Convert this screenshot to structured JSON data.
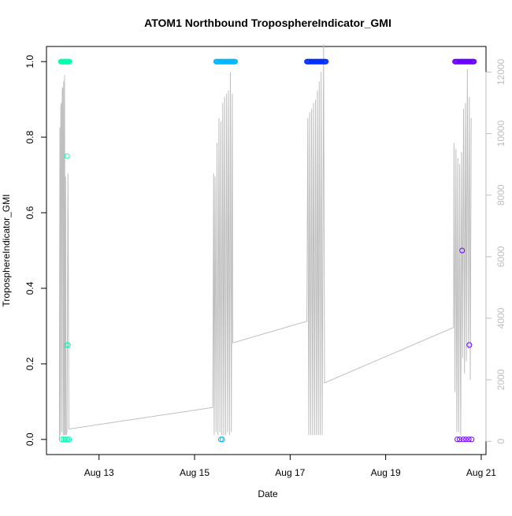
{
  "chart_data": {
    "type": "scatter",
    "title": "ATOM1 Northbound TroposphereIndicator_GMI",
    "xlabel": "Date",
    "ylabel": "TroposphereIndicator_GMI",
    "x_axis": {
      "ticks": [
        "Aug 13",
        "Aug 15",
        "Aug 17",
        "Aug 19",
        "Aug 21"
      ],
      "tick_values_days": [
        13,
        15,
        17,
        19,
        21
      ],
      "range_days": [
        11.9,
        21.1
      ]
    },
    "y_axis_left": {
      "range": [
        -0.04,
        1.04
      ],
      "ticks": [
        "0.0",
        "0.2",
        "0.4",
        "0.6",
        "0.8",
        "1.0"
      ],
      "tick_values": [
        0,
        0.2,
        0.4,
        0.6,
        0.8,
        1.0
      ]
    },
    "y_axis_right": {
      "range": [
        -430,
        12830
      ],
      "ticks": [
        "0",
        "2000",
        "4000",
        "6000",
        "8000",
        "10000",
        "12000"
      ],
      "tick_values": [
        0,
        2000,
        4000,
        6000,
        8000,
        10000,
        12000
      ],
      "color": "#bebebe"
    },
    "grid": false,
    "legend": "none",
    "series": [
      {
        "color": "#00ffb0",
        "x_start_day": 12.2,
        "x_end_day": 12.38,
        "points": [
          {
            "x": 12.22,
            "y": 1.0
          },
          {
            "x": 12.25,
            "y": 1.0
          },
          {
            "x": 12.28,
            "y": 1.0
          },
          {
            "x": 12.31,
            "y": 1.0
          },
          {
            "x": 12.34,
            "y": 1.0
          },
          {
            "x": 12.37,
            "y": 1.0
          },
          {
            "x": 12.22,
            "y": 0.0
          },
          {
            "x": 12.26,
            "y": 0.0
          },
          {
            "x": 12.3,
            "y": 0.0
          },
          {
            "x": 12.34,
            "y": 0.0
          },
          {
            "x": 12.37,
            "y": 0.0
          },
          {
            "x": 12.32,
            "y": 0.25
          },
          {
            "x": 12.35,
            "y": 0.25
          },
          {
            "x": 12.33,
            "y": 0.75
          }
        ]
      },
      {
        "color": "#00b8ff",
        "x_start_day": 15.45,
        "x_end_day": 15.85,
        "points": [
          {
            "x": 15.47,
            "y": 1.0
          },
          {
            "x": 15.53,
            "y": 1.0
          },
          {
            "x": 15.6,
            "y": 1.0
          },
          {
            "x": 15.67,
            "y": 1.0
          },
          {
            "x": 15.74,
            "y": 1.0
          },
          {
            "x": 15.82,
            "y": 1.0
          },
          {
            "x": 15.55,
            "y": 0.0
          },
          {
            "x": 15.58,
            "y": 0.0
          }
        ]
      },
      {
        "color": "#0030ff",
        "x_start_day": 17.35,
        "x_end_day": 17.75,
        "points": [
          {
            "x": 17.37,
            "y": 1.0
          },
          {
            "x": 17.44,
            "y": 1.0
          },
          {
            "x": 17.51,
            "y": 1.0
          },
          {
            "x": 17.58,
            "y": 1.0
          },
          {
            "x": 17.65,
            "y": 1.0
          },
          {
            "x": 17.72,
            "y": 1.0
          }
        ]
      },
      {
        "color": "#6a00ff",
        "x_start_day": 20.45,
        "x_end_day": 20.85,
        "points": [
          {
            "x": 20.47,
            "y": 1.0
          },
          {
            "x": 20.54,
            "y": 1.0
          },
          {
            "x": 20.61,
            "y": 1.0
          },
          {
            "x": 20.68,
            "y": 1.0
          },
          {
            "x": 20.75,
            "y": 1.0
          },
          {
            "x": 20.82,
            "y": 1.0
          },
          {
            "x": 20.5,
            "y": 0.0
          },
          {
            "x": 20.55,
            "y": 0.0
          },
          {
            "x": 20.62,
            "y": 0.0
          },
          {
            "x": 20.68,
            "y": 0.0
          },
          {
            "x": 20.74,
            "y": 0.0
          },
          {
            "x": 20.8,
            "y": 0.0
          },
          {
            "x": 20.6,
            "y": 0.5
          },
          {
            "x": 20.75,
            "y": 0.25
          }
        ]
      }
    ],
    "altitude_line": {
      "color": "#bebebe",
      "axis": "right",
      "points": [
        {
          "x": 12.17,
          "y": 50
        },
        {
          "x": 12.18,
          "y": 10200
        },
        {
          "x": 12.19,
          "y": 200
        },
        {
          "x": 12.2,
          "y": 10900
        },
        {
          "x": 12.21,
          "y": 11000
        },
        {
          "x": 12.22,
          "y": 300
        },
        {
          "x": 12.23,
          "y": 11400
        },
        {
          "x": 12.24,
          "y": 11500
        },
        {
          "x": 12.25,
          "y": 200
        },
        {
          "x": 12.26,
          "y": 11700
        },
        {
          "x": 12.27,
          "y": 200
        },
        {
          "x": 12.28,
          "y": 11900
        },
        {
          "x": 12.29,
          "y": 200
        },
        {
          "x": 12.3,
          "y": 8600
        },
        {
          "x": 12.31,
          "y": 200
        },
        {
          "x": 12.33,
          "y": 300
        },
        {
          "x": 12.35,
          "y": 8700
        },
        {
          "x": 12.37,
          "y": 400
        },
        {
          "x": 15.38,
          "y": 1100
        },
        {
          "x": 15.4,
          "y": 8700
        },
        {
          "x": 15.41,
          "y": 200
        },
        {
          "x": 15.43,
          "y": 8600
        },
        {
          "x": 15.45,
          "y": 300
        },
        {
          "x": 15.47,
          "y": 9700
        },
        {
          "x": 15.49,
          "y": 200
        },
        {
          "x": 15.51,
          "y": 10500
        },
        {
          "x": 15.53,
          "y": 300
        },
        {
          "x": 15.55,
          "y": 10400
        },
        {
          "x": 15.57,
          "y": 200
        },
        {
          "x": 15.59,
          "y": 11000
        },
        {
          "x": 15.61,
          "y": 200
        },
        {
          "x": 15.63,
          "y": 11200
        },
        {
          "x": 15.65,
          "y": 200
        },
        {
          "x": 15.67,
          "y": 11300
        },
        {
          "x": 15.69,
          "y": 300
        },
        {
          "x": 15.71,
          "y": 11400
        },
        {
          "x": 15.73,
          "y": 200
        },
        {
          "x": 15.75,
          "y": 12000
        },
        {
          "x": 15.77,
          "y": 300
        },
        {
          "x": 15.79,
          "y": 11300
        },
        {
          "x": 15.8,
          "y": 3200
        },
        {
          "x": 17.35,
          "y": 3900
        },
        {
          "x": 17.37,
          "y": 10500
        },
        {
          "x": 17.39,
          "y": 200
        },
        {
          "x": 17.41,
          "y": 10700
        },
        {
          "x": 17.43,
          "y": 200
        },
        {
          "x": 17.45,
          "y": 10800
        },
        {
          "x": 17.47,
          "y": 200
        },
        {
          "x": 17.49,
          "y": 11000
        },
        {
          "x": 17.51,
          "y": 200
        },
        {
          "x": 17.53,
          "y": 11100
        },
        {
          "x": 17.55,
          "y": 200
        },
        {
          "x": 17.57,
          "y": 11400
        },
        {
          "x": 17.59,
          "y": 200
        },
        {
          "x": 17.61,
          "y": 11700
        },
        {
          "x": 17.63,
          "y": 200
        },
        {
          "x": 17.65,
          "y": 12000
        },
        {
          "x": 17.67,
          "y": 200
        },
        {
          "x": 17.7,
          "y": 12900
        },
        {
          "x": 17.72,
          "y": 1900
        },
        {
          "x": 20.42,
          "y": 3700
        },
        {
          "x": 20.43,
          "y": 9700
        },
        {
          "x": 20.45,
          "y": 1600
        },
        {
          "x": 20.47,
          "y": 9500
        },
        {
          "x": 20.49,
          "y": 300
        },
        {
          "x": 20.51,
          "y": 9200
        },
        {
          "x": 20.53,
          "y": 300
        },
        {
          "x": 20.55,
          "y": 9000
        },
        {
          "x": 20.57,
          "y": 200
        },
        {
          "x": 20.59,
          "y": 9400
        },
        {
          "x": 20.61,
          "y": 2700
        },
        {
          "x": 20.63,
          "y": 10800
        },
        {
          "x": 20.65,
          "y": 2200
        },
        {
          "x": 20.67,
          "y": 11000
        },
        {
          "x": 20.69,
          "y": 2600
        },
        {
          "x": 20.71,
          "y": 12100
        },
        {
          "x": 20.73,
          "y": 3000
        },
        {
          "x": 20.75,
          "y": 11200
        },
        {
          "x": 20.77,
          "y": 2000
        },
        {
          "x": 20.79,
          "y": 10500
        }
      ]
    }
  }
}
